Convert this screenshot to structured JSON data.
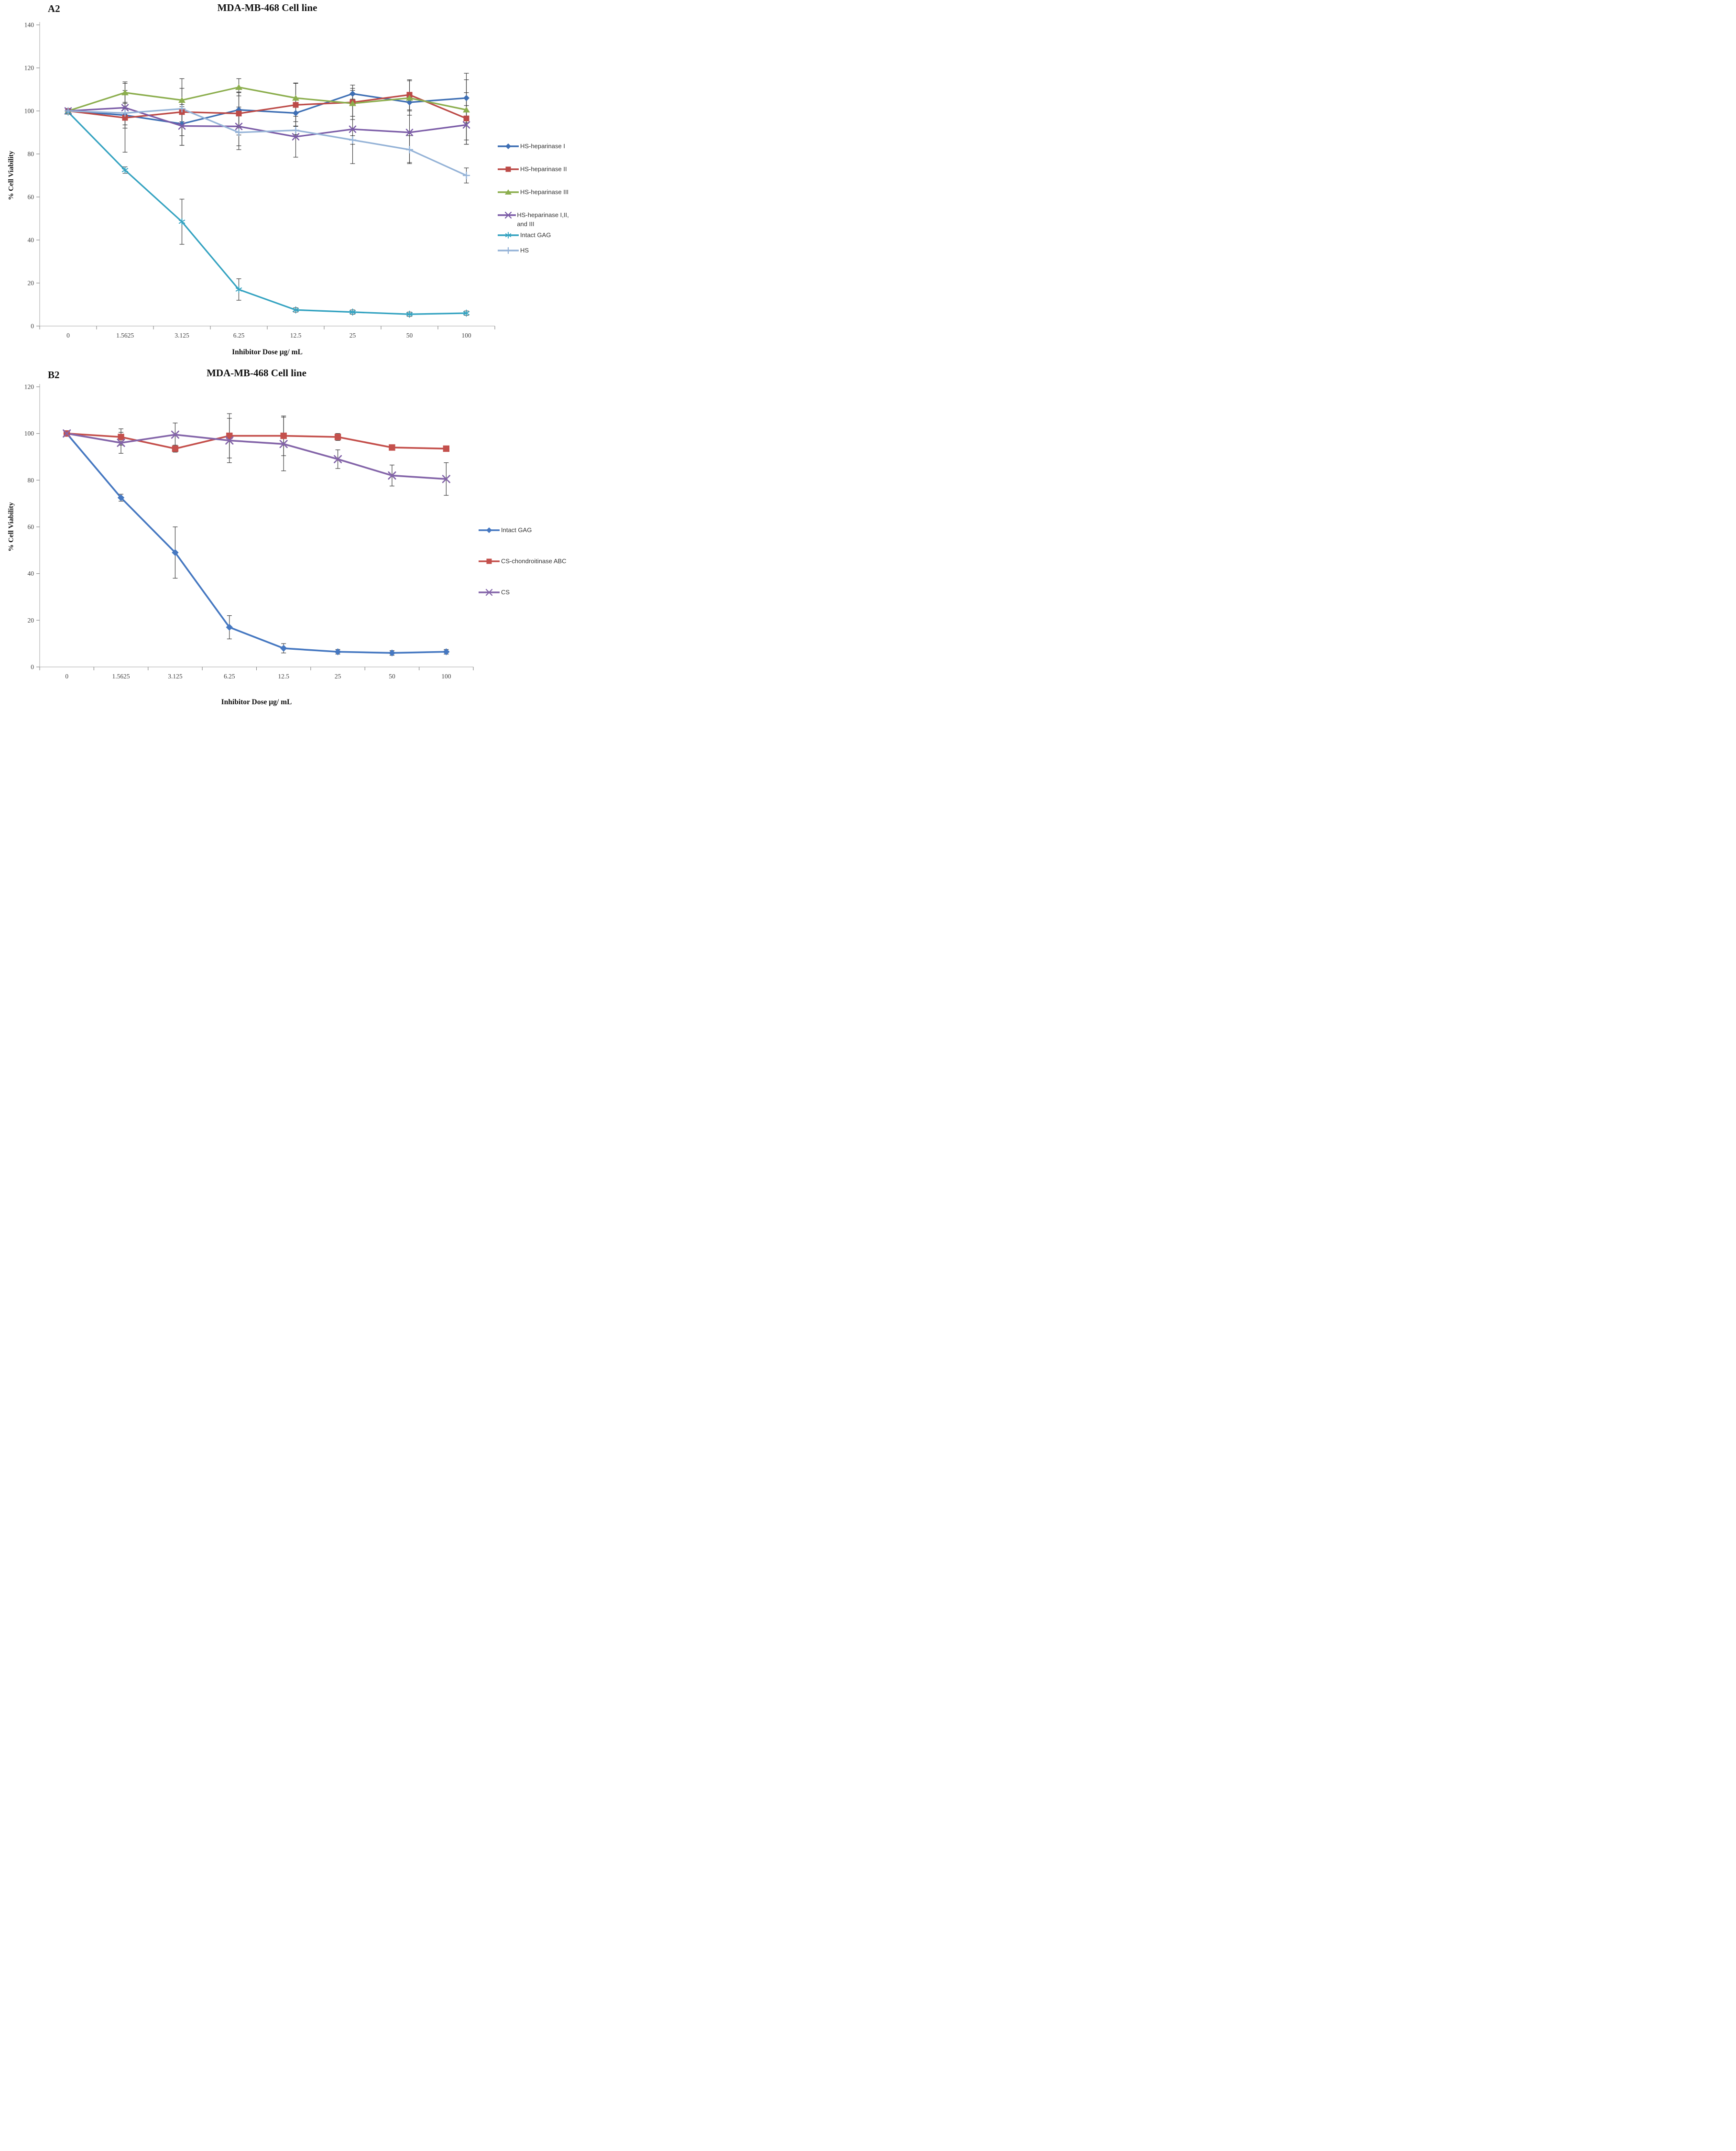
{
  "figure": {
    "background": "#FFFFFF",
    "axis_line_color": "#C6C6C6",
    "tick_mark_color": "#8C8C8C",
    "tick_text_color": "#404040",
    "error_bar_color": "#3F3F3F"
  },
  "chart_data": [
    {
      "type": "line",
      "panel_label": "A2",
      "title": "MDA-MB-468 Cell line",
      "xlabel": "Inhibitor Dose µg/ mL",
      "ylabel": "% Cell Viability",
      "categories": [
        "0",
        "1.5625",
        "3.125",
        "6.25",
        "12.5",
        "25",
        "50",
        "100"
      ],
      "ylim": [
        0,
        140
      ],
      "ytick_step": 20,
      "grid": false,
      "legend_position": "right",
      "series": [
        {
          "name": "HS-heparinase I",
          "color": "#3E6FB4",
          "marker": "diamond",
          "values": [
            100,
            98,
            94,
            100.5,
            99,
            108,
            104,
            106
          ],
          "errors": [
            1,
            6,
            10,
            8,
            4,
            2.5,
            4,
            11.5
          ]
        },
        {
          "name": "HS-heparinase II",
          "color": "#BC4A47",
          "marker": "square",
          "values": [
            100,
            96.8,
            99.5,
            98.8,
            102.8,
            104,
            107.5,
            96.5
          ],
          "errors": [
            1,
            16,
            11,
            10,
            10,
            8,
            7,
            12
          ]
        },
        {
          "name": "HS-heparinase III",
          "color": "#8CAE4E",
          "marker": "triangle",
          "values": [
            100,
            108.5,
            105,
            111,
            106,
            103.5,
            106,
            100.5
          ],
          "errors": [
            1,
            5,
            10,
            4,
            7,
            6,
            8,
            14
          ]
        },
        {
          "name": "HS-heparinase I,II, and III",
          "color": "#7B5CA7",
          "marker": "x",
          "values": [
            100,
            101.5,
            93,
            92.8,
            88,
            91.5,
            90,
            93.5
          ],
          "errors": [
            1,
            8,
            9,
            9,
            9.5,
            16,
            14,
            9
          ]
        },
        {
          "name": "Intact GAG",
          "color": "#35A3C1",
          "marker": "star6",
          "values": [
            99.5,
            72.5,
            48.5,
            17,
            7.5,
            6.5,
            5.5,
            6
          ],
          "errors": [
            1,
            1.5,
            10.5,
            5,
            1,
            1,
            1,
            1
          ]
        },
        {
          "name": "HS",
          "color": "#95B3D7",
          "marker": "plus",
          "values": [
            100,
            99,
            101,
            90,
            91,
            86.5,
            82,
            70
          ],
          "errors": [
            1,
            2,
            2,
            8,
            2,
            2,
            6.5,
            3.5
          ]
        }
      ]
    },
    {
      "type": "line",
      "panel_label": "B2",
      "title": "MDA-MB-468 Cell line",
      "xlabel": "Inhibitor Dose µg/ mL",
      "ylabel": "% Cell Viability",
      "categories": [
        "0",
        "1.5625",
        "3.125",
        "6.25",
        "12.5",
        "25",
        "50",
        "100"
      ],
      "ylim": [
        0,
        120
      ],
      "ytick_step": 20,
      "grid": false,
      "legend_position": "right",
      "series": [
        {
          "name": "Intact GAG",
          "color": "#4678C1",
          "marker": "diamond",
          "values": [
            100,
            72.5,
            49,
            17,
            8,
            6.5,
            6,
            6.5
          ],
          "errors": [
            0.5,
            1.5,
            11,
            5,
            2,
            1,
            1,
            1
          ]
        },
        {
          "name": "CS-chondroitinase ABC",
          "color": "#C4504C",
          "marker": "square",
          "values": [
            100,
            98.5,
            93.5,
            99,
            99,
            98.5,
            94,
            93.5
          ],
          "errors": [
            0.5,
            3.5,
            1.5,
            9.5,
            8.5,
            1.5,
            1,
            1
          ]
        },
        {
          "name": "CS",
          "color": "#8465A9",
          "marker": "x",
          "values": [
            100,
            96,
            99.5,
            97,
            95.5,
            89,
            82,
            80.5
          ],
          "errors": [
            0.5,
            4.5,
            5,
            9.5,
            11.5,
            4,
            4.5,
            7
          ]
        }
      ]
    }
  ]
}
